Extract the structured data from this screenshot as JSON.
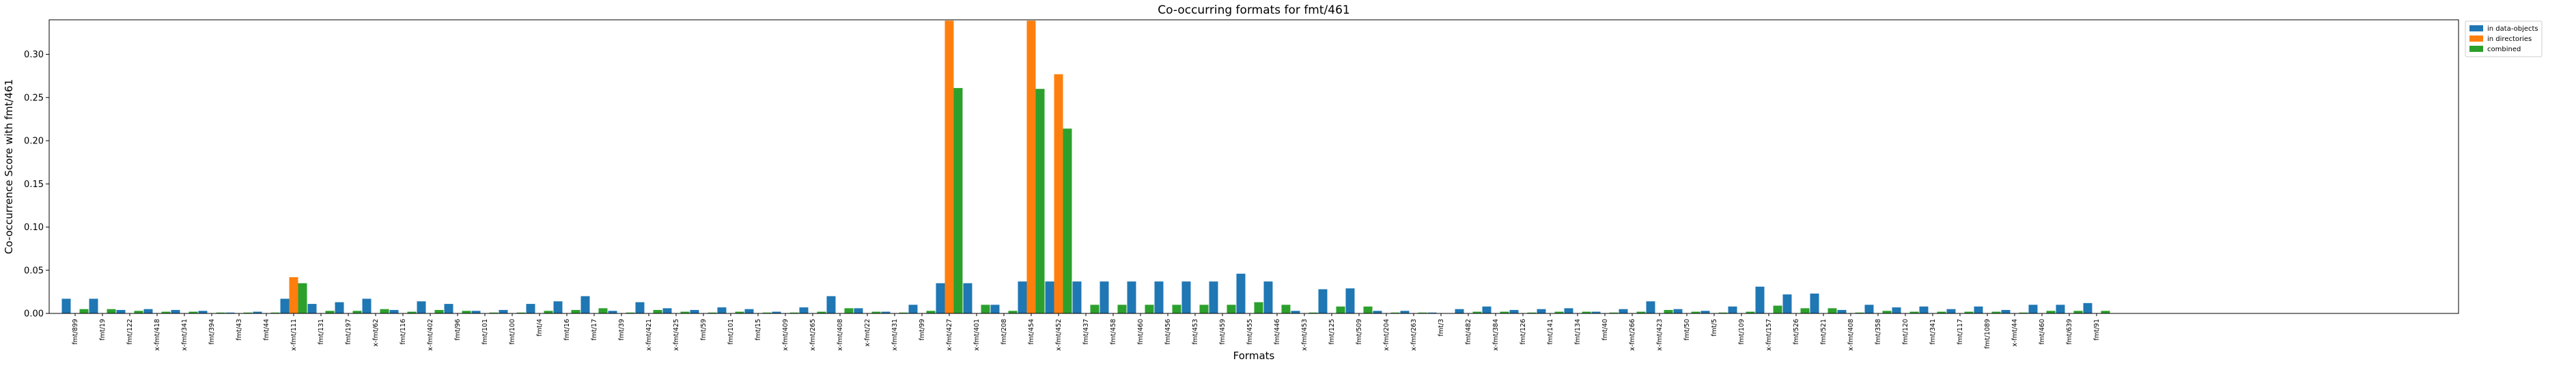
{
  "chart_data": {
    "type": "bar",
    "title": "Co-occurring formats for fmt/461",
    "xlabel": "Formats",
    "ylabel": "Co-occurrence Score with fmt/461",
    "ylim": [
      0,
      0.34
    ],
    "yticks": [
      "0.00",
      "0.05",
      "0.10",
      "0.15",
      "0.20",
      "0.25",
      "0.30"
    ],
    "ytick_values": [
      0,
      0.05,
      0.1,
      0.15,
      0.2,
      0.25,
      0.3
    ],
    "grid": false,
    "legend_position": "outside top-right",
    "colors": [
      "#1f77b4",
      "#ff7f0e",
      "#2ca02c"
    ],
    "categories": [
      "fmt/899",
      "fmt/19",
      "fmt/122",
      "x-fmt/418",
      "x-fmt/341",
      "fmt/394",
      "fmt/43",
      "fmt/44",
      "x-fmt/111",
      "fmt/131",
      "fmt/197",
      "x-fmt/62",
      "fmt/116",
      "x-fmt/402",
      "fmt/96",
      "fmt/101",
      "fmt/100",
      "fmt/4",
      "fmt/16",
      "fmt/17",
      "fmt/39",
      "x-fmt/421",
      "x-fmt/425",
      "fmt/59",
      "fmt/101",
      "fmt/15",
      "x-fmt/409",
      "x-fmt/265",
      "x-fmt/408",
      "x-fmt/22",
      "x-fmt/431",
      "fmt/99",
      "x-fmt/427",
      "x-fmt/401",
      "fmt/208",
      "fmt/454",
      "x-fmt/452",
      "fmt/437",
      "fmt/458",
      "fmt/460",
      "fmt/456",
      "fmt/453",
      "fmt/459",
      "fmt/455",
      "fmt/446",
      "x-fmt/453",
      "fmt/125",
      "fmt/509",
      "x-fmt/204",
      "x-fmt/263",
      "fmt/3",
      "fmt/482",
      "x-fmt/384",
      "fmt/126",
      "fmt/141",
      "fmt/134",
      "fmt/40",
      "x-fmt/266",
      "x-fmt/423",
      "fmt/50",
      "fmt/5",
      "fmt/109",
      "x-fmt/157",
      "fmt/526",
      "fmt/521",
      "x-fmt/408",
      "fmt/358",
      "fmt/120",
      "fmt/341",
      "fmt/117",
      "fmt/1089",
      "x-fmt/44",
      "fmt/460",
      "fmt/639",
      "fmt/91"
    ],
    "series": [
      {
        "name": "in data-objects",
        "values": [
          0.017,
          0.017,
          0.004,
          0.005,
          0.004,
          0.003,
          0.001,
          0.002,
          0.017,
          0.011,
          0.013,
          0.017,
          0.004,
          0.014,
          0.011,
          0.003,
          0.004,
          0.011,
          0.014,
          0.02,
          0.003,
          0.013,
          0.006,
          0.004,
          0.007,
          0.005,
          0.002,
          0.007,
          0.02,
          0.006,
          0.002,
          0.01,
          0.035,
          0.035,
          0.01,
          0.037,
          0.037,
          0.037,
          0.037,
          0.037,
          0.037,
          0.037,
          0.037,
          0.046,
          0.037,
          0.003,
          0.028,
          0.029,
          0.003,
          0.003,
          0.001,
          0.005,
          0.008,
          0.004,
          0.005,
          0.006,
          0.002,
          0.005,
          0.014,
          0.005,
          0.003,
          0.008,
          0.031,
          0.022,
          0.023,
          0.004,
          0.01,
          0.007,
          0.008,
          0.005,
          0.008,
          0.004,
          0.01,
          0.01,
          0.012
        ]
      },
      {
        "name": "in directories",
        "values": [
          0,
          0,
          0,
          0,
          0,
          0,
          0,
          0,
          0.042,
          0,
          0,
          0,
          0,
          0,
          0,
          0,
          0,
          0,
          0,
          0,
          0,
          0,
          0,
          0,
          0,
          0,
          0,
          0,
          0,
          0,
          0,
          0,
          0.339,
          0,
          0,
          0.339,
          0.277,
          0,
          0,
          0,
          0,
          0,
          0,
          0,
          0,
          0,
          0,
          0,
          0,
          0,
          0,
          0,
          0,
          0,
          0,
          0,
          0,
          0,
          0,
          0,
          0,
          0,
          0,
          0,
          0,
          0,
          0,
          0,
          0,
          0,
          0,
          0,
          0,
          0,
          0
        ]
      },
      {
        "name": "combined",
        "values": [
          0.005,
          0.005,
          0.003,
          0.002,
          0.002,
          0.001,
          0.001,
          0.001,
          0.035,
          0.003,
          0.003,
          0.005,
          0.002,
          0.004,
          0.003,
          0.001,
          0.001,
          0.003,
          0.004,
          0.006,
          0.001,
          0.004,
          0.002,
          0.001,
          0.002,
          0.001,
          0.001,
          0.002,
          0.006,
          0.002,
          0.001,
          0.003,
          0.261,
          0.01,
          0.003,
          0.26,
          0.214,
          0.01,
          0.01,
          0.01,
          0.01,
          0.01,
          0.01,
          0.013,
          0.01,
          0.001,
          0.008,
          0.008,
          0.001,
          0.001,
          0.0,
          0.002,
          0.002,
          0.001,
          0.002,
          0.002,
          0.001,
          0.002,
          0.004,
          0.002,
          0.001,
          0.002,
          0.009,
          0.006,
          0.006,
          0.001,
          0.003,
          0.002,
          0.002,
          0.002,
          0.002,
          0.001,
          0.003,
          0.003,
          0.003
        ]
      }
    ]
  }
}
